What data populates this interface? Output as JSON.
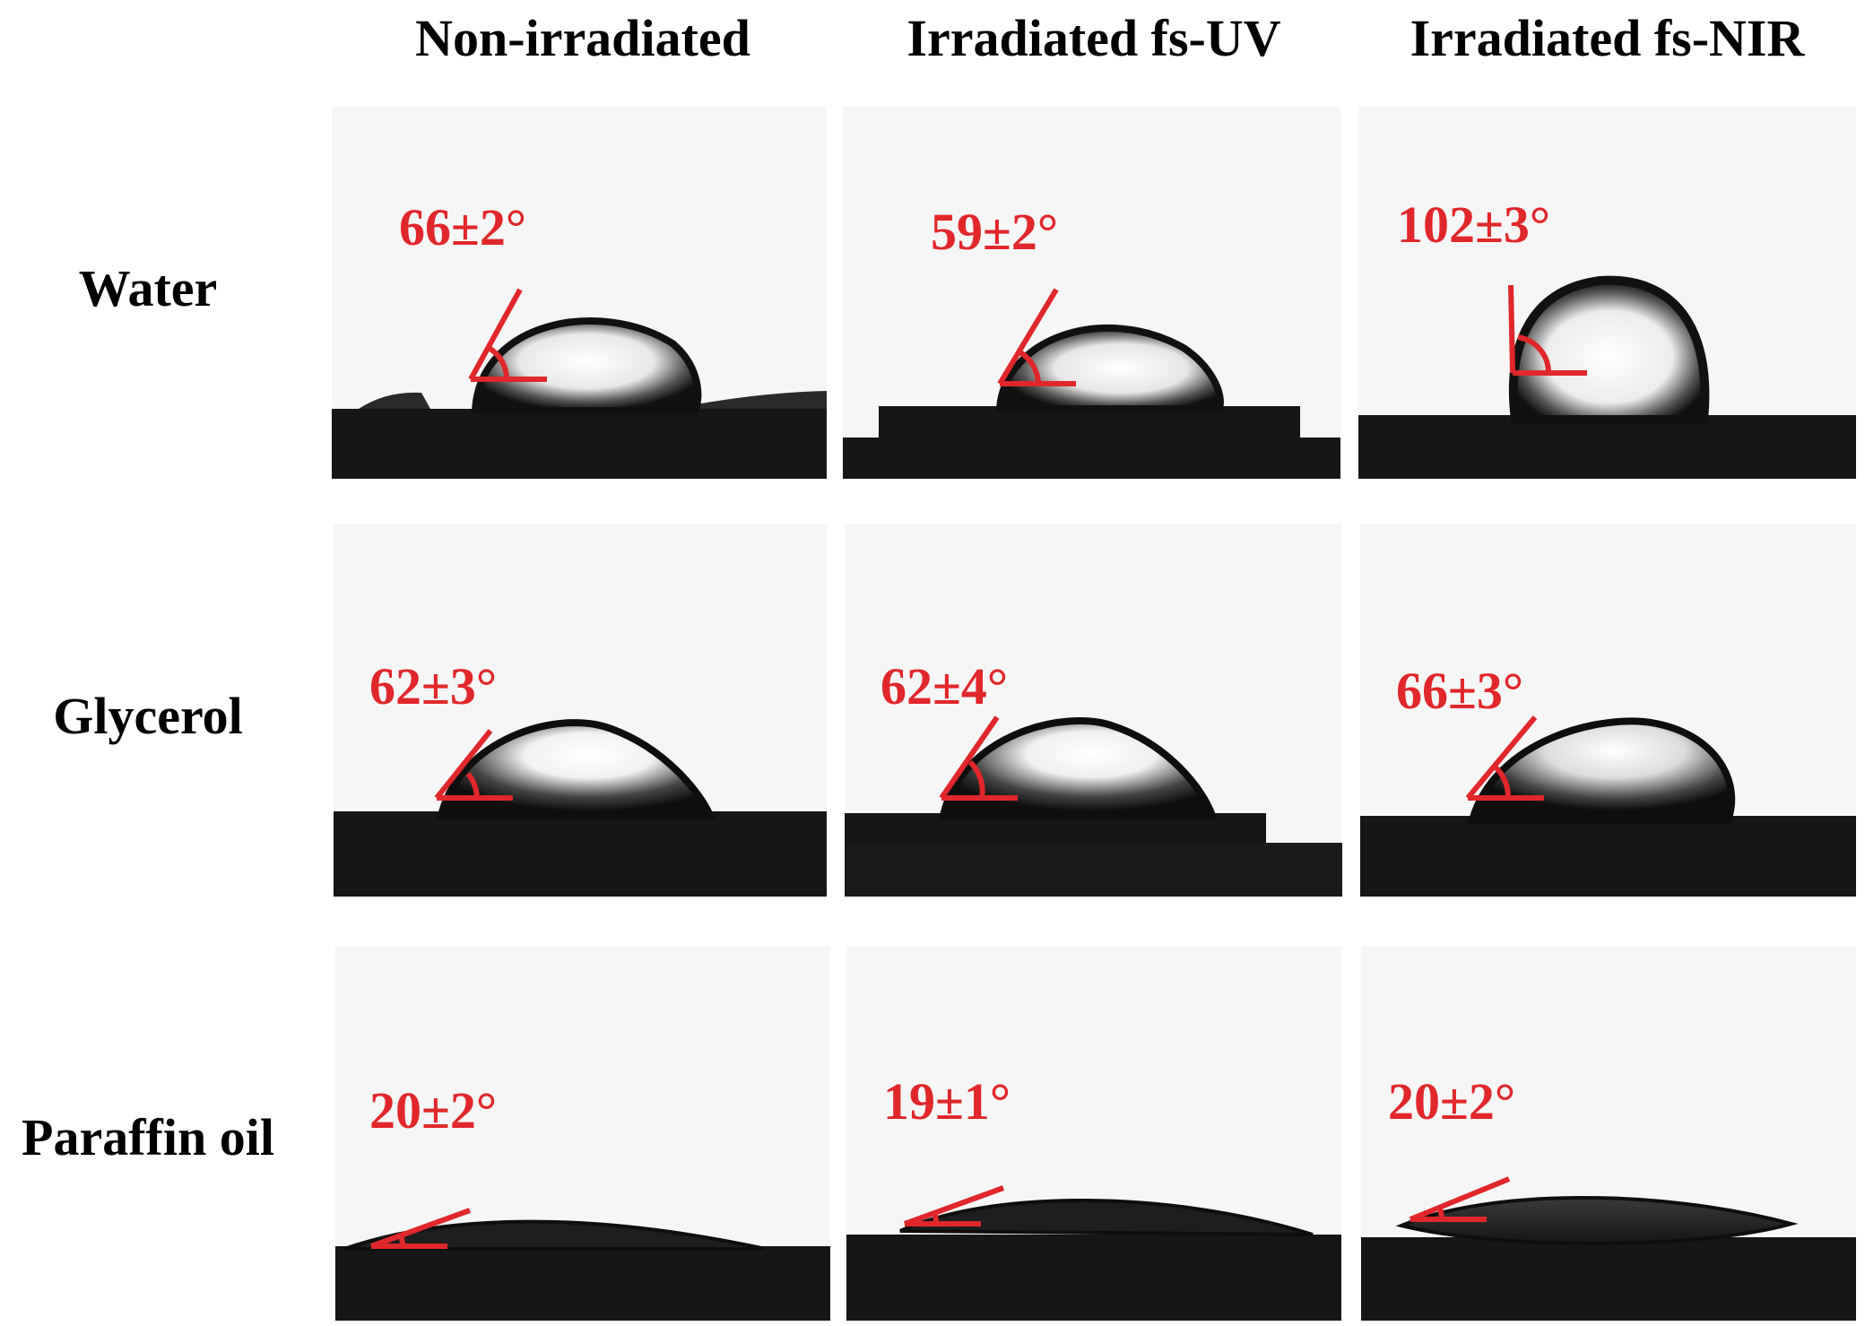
{
  "columns": [
    "Non-irradiated",
    "Irradiated fs-UV",
    "Irradiated fs-NIR"
  ],
  "rows": [
    "Water",
    "Glycerol",
    "Paraffin oil"
  ],
  "angles": [
    [
      "66±2°",
      "59±2°",
      "102±3°"
    ],
    [
      "62±3°",
      "62±4°",
      "66±3°"
    ],
    [
      "20±2°",
      "19±1°",
      "20±2°"
    ]
  ],
  "colors": {
    "angle_annotation": "#e0272b",
    "substrate": "#111111",
    "background": "#f6f6f6"
  }
}
